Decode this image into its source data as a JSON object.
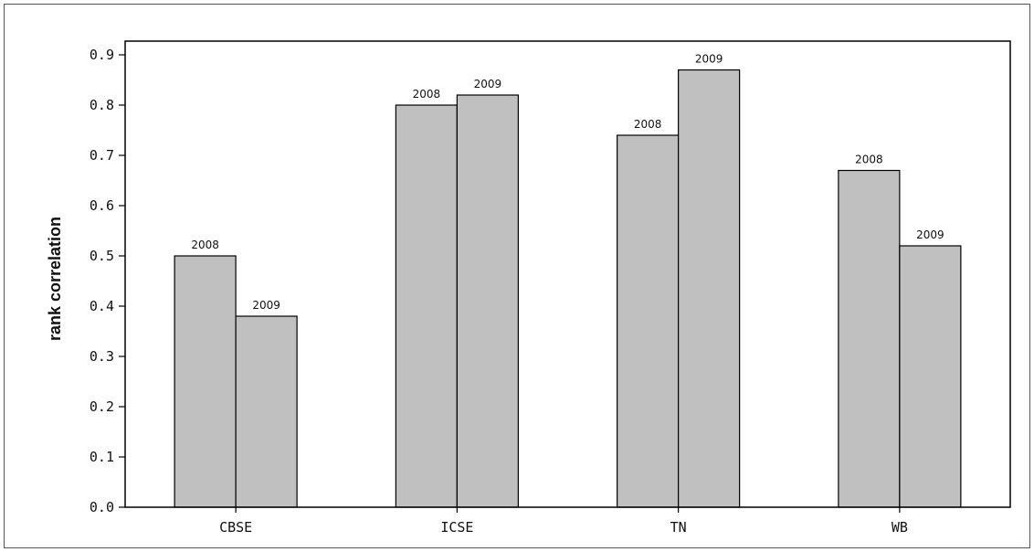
{
  "chart_data": {
    "type": "bar",
    "title": "",
    "xlabel": "",
    "ylabel": "rank correlation",
    "ylim": [
      0,
      0.9
    ],
    "yticks": [
      "0.0",
      "0.1",
      "0.2",
      "0.3",
      "0.4",
      "0.5",
      "0.6",
      "0.7",
      "0.8",
      "0.9"
    ],
    "grid": false,
    "legend": "none",
    "bar_color": "#c0c0c0",
    "categories": [
      "CBSE",
      "ICSE",
      "TN",
      "WB"
    ],
    "series": [
      {
        "label": "2008",
        "values": [
          0.5,
          0.8,
          0.74,
          0.67
        ]
      },
      {
        "label": "2009",
        "values": [
          0.38,
          0.82,
          0.87,
          0.52
        ]
      }
    ]
  }
}
